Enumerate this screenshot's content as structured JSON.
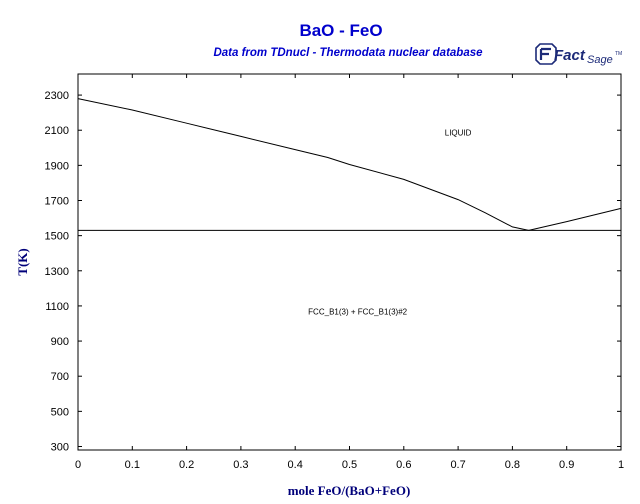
{
  "chart_data": {
    "type": "line",
    "title": "BaO - FeO",
    "subtitle": "Data from TDnucl - Thermodata nuclear database",
    "xlabel": "mole FeO/(BaO+FeO)",
    "ylabel": "T(K)",
    "xlim": [
      0,
      1
    ],
    "ylim": [
      280,
      2420
    ],
    "x_ticks": [
      0,
      0.1,
      0.2,
      0.3,
      0.4,
      0.5,
      0.6,
      0.7,
      0.8,
      0.9,
      1
    ],
    "x_tick_labels": [
      "0",
      "0.1",
      "0.2",
      "0.3",
      "0.4",
      "0.5",
      "0.6",
      "0.7",
      "0.8",
      "0.9",
      "1"
    ],
    "y_ticks": [
      300,
      500,
      700,
      900,
      1100,
      1300,
      1500,
      1700,
      1900,
      2100,
      2300
    ],
    "y_tick_labels": [
      "300",
      "500",
      "700",
      "900",
      "1100",
      "1300",
      "1500",
      "1700",
      "1900",
      "2100",
      "2300"
    ],
    "grid": false,
    "series": [
      {
        "x": [
          0,
          0.1,
          0.2,
          0.3,
          0.4,
          0.46,
          0.5,
          0.6,
          0.7,
          0.75,
          0.8,
          0.83
        ],
        "y": [
          2280,
          2215,
          2140,
          2065,
          1990,
          1945,
          1905,
          1820,
          1705,
          1630,
          1550,
          1530
        ]
      },
      {
        "x": [
          0.83,
          0.9,
          1.0
        ],
        "y": [
          1530,
          1580,
          1655
        ]
      },
      {
        "x": [
          0,
          1
        ],
        "y": [
          1530,
          1530
        ]
      }
    ],
    "annotations": [
      {
        "text": "LIQUID",
        "x": 0.7,
        "y": 2070
      },
      {
        "text": "FCC_B1(3) + FCC_B1(3)#2",
        "x": 0.515,
        "y": 1050
      }
    ],
    "line_color": "#000000"
  },
  "logo": {
    "brand_text": "FactSage",
    "fact": "Fact",
    "sage": "Sage",
    "tm": "TM"
  }
}
